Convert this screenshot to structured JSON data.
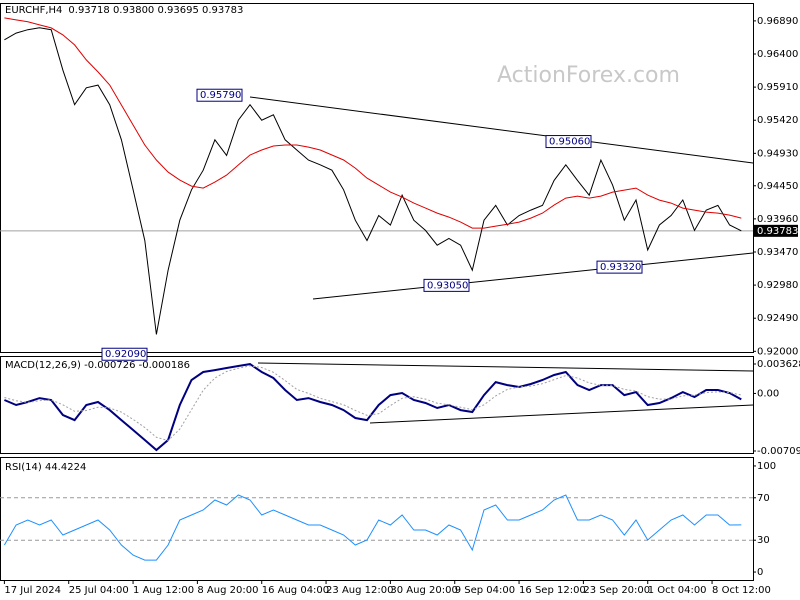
{
  "watermark": "ActionForex.com",
  "chart_data": [
    {
      "type": "line",
      "title": "EURCHF,H4",
      "subtitle": "0.93718 0.93800 0.93695 0.93783",
      "x": [
        0,
        8,
        16,
        24,
        32,
        40,
        48,
        56,
        64,
        72,
        80,
        88,
        96,
        104,
        112,
        120,
        128,
        136,
        144,
        152,
        160,
        168,
        176,
        184,
        192,
        200,
        208,
        216,
        224,
        232,
        240,
        248,
        256,
        264,
        272,
        280,
        288,
        296,
        304,
        312,
        320,
        328,
        336,
        344,
        352,
        360,
        368,
        376,
        384,
        392,
        400,
        408,
        416,
        424,
        432,
        440,
        448,
        456,
        464,
        472,
        480,
        488,
        496,
        504
      ],
      "xlim": [
        -3,
        512
      ],
      "ylim": [
        0.9199,
        0.9714
      ],
      "yticks": [
        {
          "value": 0.9689,
          "label": "0.96890"
        },
        {
          "value": 0.964,
          "label": "0.96400"
        },
        {
          "value": 0.9591,
          "label": "0.95910"
        },
        {
          "value": 0.9542,
          "label": "0.95420"
        },
        {
          "value": 0.9493,
          "label": "0.94930"
        },
        {
          "value": 0.9445,
          "label": "0.94450"
        },
        {
          "value": 0.9396,
          "label": "0.93960"
        },
        {
          "value": 0.9347,
          "label": "0.93470"
        },
        {
          "value": 0.9298,
          "label": "0.92980"
        },
        {
          "value": 0.9249,
          "label": "0.92490"
        },
        {
          "value": 0.92,
          "label": "0.92000"
        }
      ],
      "series": [
        {
          "color": "#000000",
          "values": [
            0.9661,
            0.9671,
            0.9676,
            0.9679,
            0.9676,
            0.9616,
            0.9565,
            0.959,
            0.9594,
            0.9565,
            0.9513,
            0.9439,
            0.9364,
            0.9225,
            0.932,
            0.9394,
            0.9439,
            0.9468,
            0.9513,
            0.949,
            0.9542,
            0.9565,
            0.9542,
            0.955,
            0.9513,
            0.9498,
            0.9483,
            0.9476,
            0.9468,
            0.9439,
            0.9394,
            0.9364,
            0.9401,
            0.9387,
            0.9431,
            0.9394,
            0.9379,
            0.9357,
            0.9367,
            0.9357,
            0.932,
            0.9394,
            0.9416,
            0.9387,
            0.9401,
            0.9409,
            0.9416,
            0.9453,
            0.9476,
            0.9453,
            0.9431,
            0.9483,
            0.9446,
            0.9394,
            0.9424,
            0.935,
            0.9387,
            0.9401,
            0.9424,
            0.9379,
            0.9409,
            0.9416,
            0.9387,
            0.93783
          ]
        },
        {
          "color": "#e00000",
          "values": [
            0.96935,
            0.96905,
            0.96876,
            0.96831,
            0.96787,
            0.96683,
            0.96535,
            0.96313,
            0.96135,
            0.95942,
            0.95646,
            0.95349,
            0.95053,
            0.94831,
            0.94653,
            0.94534,
            0.94445,
            0.94416,
            0.94505,
            0.94608,
            0.94757,
            0.94905,
            0.94979,
            0.95038,
            0.95053,
            0.95053,
            0.95023,
            0.94979,
            0.94905,
            0.94831,
            0.94712,
            0.94564,
            0.9446,
            0.94356,
            0.94282,
            0.94193,
            0.94119,
            0.94045,
            0.93986,
            0.93912,
            0.93823,
            0.93823,
            0.93853,
            0.93882,
            0.93912,
            0.93971,
            0.94045,
            0.94164,
            0.94267,
            0.94297,
            0.94267,
            0.94297,
            0.94356,
            0.94386,
            0.94416,
            0.94312,
            0.94238,
            0.94193,
            0.94119,
            0.9409,
            0.9406,
            0.94045,
            0.94016,
            0.93971
          ]
        }
      ],
      "last_price": {
        "value": 0.93783,
        "label": "0.93783"
      },
      "annotations": [
        {
          "value": 0.9579,
          "label": "0.95790"
        },
        {
          "value": 0.9209,
          "label": "0.92090"
        },
        {
          "value": 0.9305,
          "label": "0.93050"
        },
        {
          "value": 0.9506,
          "label": "0.95060"
        },
        {
          "value": 0.9332,
          "label": "0.93320"
        }
      ]
    },
    {
      "type": "line",
      "title": "MACD(12,26,9) -0.000726 -0.000186",
      "x": [
        0,
        8,
        16,
        24,
        32,
        40,
        48,
        56,
        64,
        72,
        80,
        88,
        96,
        104,
        112,
        120,
        128,
        136,
        144,
        152,
        160,
        168,
        176,
        184,
        192,
        200,
        208,
        216,
        224,
        232,
        240,
        248,
        256,
        264,
        272,
        280,
        288,
        296,
        304,
        312,
        320,
        328,
        336,
        344,
        352,
        360,
        368,
        376,
        384,
        392,
        400,
        408,
        416,
        424,
        432,
        440,
        448,
        456,
        464,
        472,
        480,
        488,
        496,
        504
      ],
      "xlim": [
        -3,
        512
      ],
      "ylim": [
        -0.00734,
        0.00449
      ],
      "yticks": [
        0.003628,
        {
          "value": 0,
          "label": "0.00"
        },
        -0.007093
      ],
      "series": [
        {
          "color": "#000080",
          "values": [
            -0.00081,
            -0.00143,
            -0.00106,
            -0.00057,
            -0.00081,
            -0.00266,
            -0.00328,
            -0.00143,
            -0.00106,
            -0.00205,
            -0.00328,
            -0.00451,
            -0.00574,
            -0.00697,
            -0.00574,
            -0.00143,
            0.00165,
            0.00264,
            0.00288,
            0.00313,
            0.00338,
            0.00362,
            0.00264,
            0.0019,
            0.00042,
            -0.00081,
            -0.00057,
            -0.00106,
            -0.00143,
            -0.00205,
            -0.00303,
            -0.00328,
            -0.00143,
            -0.0002,
            5e-05,
            -0.00081,
            -0.00118,
            -0.0018,
            -0.00143,
            -0.00205,
            -0.00229,
            -0.0002,
            0.0014,
            0.00103,
            0.00079,
            0.00116,
            0.00165,
            0.00227,
            0.00264,
            0.00103,
            0.00042,
            0.00103,
            0.00103,
            -0.0002,
            0.00017,
            -0.00143,
            -0.00118,
            -0.00057,
            0.00017,
            -0.00044,
            0.00042,
            0.00042,
            5e-05,
            -0.00073
          ]
        },
        {
          "color": "#a0a0a0",
          "values": [
            -0.0005,
            -0.0009,
            -0.0011,
            -0.0009,
            -0.0008,
            -0.0014,
            -0.0022,
            -0.0021,
            -0.0017,
            -0.0018,
            -0.0023,
            -0.0032,
            -0.0042,
            -0.0054,
            -0.0058,
            -0.0044,
            -0.002,
            0.0004,
            0.0019,
            0.0027,
            0.0031,
            0.0034,
            0.0032,
            0.0026,
            0.0016,
            0.0005,
            0,
            -0.0006,
            -0.001,
            -0.0014,
            -0.0021,
            -0.0027,
            -0.0025,
            -0.0015,
            -0.0006,
            -0.0004,
            -0.0007,
            -0.0012,
            -0.0014,
            -0.0017,
            -0.002,
            -0.0014,
            -0.0003,
            0.0005,
            0.0008,
            0.0009,
            0.0012,
            0.0017,
            0.0022,
            0.0019,
            0.0013,
            0.001,
            0.001,
            0.0005,
            0.0003,
            -0.0004,
            -0.0007,
            -0.0007,
            -0.0003,
            -0.0002,
            0.0001,
            0.0002,
            0.0001,
            -0.00019
          ]
        }
      ]
    },
    {
      "type": "line",
      "title": "RSI(14) 44.4224",
      "x": [
        0,
        8,
        16,
        24,
        32,
        40,
        48,
        56,
        64,
        72,
        80,
        88,
        96,
        104,
        112,
        120,
        128,
        136,
        144,
        152,
        160,
        168,
        176,
        184,
        192,
        200,
        208,
        216,
        224,
        232,
        240,
        248,
        256,
        264,
        272,
        280,
        288,
        296,
        304,
        312,
        320,
        328,
        336,
        344,
        352,
        360,
        368,
        376,
        384,
        392,
        400,
        408,
        416,
        424,
        432,
        440,
        448,
        456,
        464,
        472,
        480,
        488,
        496,
        504
      ],
      "xlim": [
        -3,
        512
      ],
      "ylim": [
        -7.5,
        107.5
      ],
      "yticks": [
        100,
        70,
        30,
        0
      ],
      "levels": [
        70,
        30
      ],
      "xticks": [
        {
          "value": 0,
          "label": "17 Jul 2024"
        },
        {
          "value": 44,
          "label": "25 Jul 04:00"
        },
        {
          "value": 88,
          "label": "1 Aug 12:00"
        },
        {
          "value": 132,
          "label": "8 Aug 20:00"
        },
        {
          "value": 176,
          "label": "16 Aug 04:00"
        },
        {
          "value": 220,
          "label": "23 Aug 12:00"
        },
        {
          "value": 264,
          "label": "30 Aug 20:00"
        },
        {
          "value": 308,
          "label": "9 Sep 04:00"
        },
        {
          "value": 352,
          "label": "16 Sep 12:00"
        },
        {
          "value": 396,
          "label": "23 Sep 20:00"
        },
        {
          "value": 440,
          "label": "1 Oct 04:00"
        },
        {
          "value": 484,
          "label": "8 Oct 12:00"
        }
      ],
      "series": [
        {
          "color": "#1e90ff",
          "values": [
            25.5,
            44.3,
            49.1,
            44.3,
            49.1,
            34.9,
            39.6,
            44.3,
            49.1,
            39.6,
            25.5,
            16,
            11.3,
            11.3,
            25.5,
            49.1,
            53.8,
            58.5,
            67.9,
            63.2,
            72.6,
            67.9,
            53.8,
            58.5,
            53.8,
            49.1,
            44.3,
            44.3,
            39.6,
            34.9,
            25.5,
            30.2,
            49.1,
            44.3,
            53.8,
            39.6,
            39.6,
            34.9,
            44.3,
            39.6,
            20.8,
            58.5,
            63.2,
            49.1,
            49.1,
            53.8,
            58.5,
            67.9,
            72.6,
            49.1,
            49.1,
            53.8,
            49.1,
            34.9,
            49.1,
            30.2,
            39.6,
            49.1,
            53.8,
            44.3,
            53.8,
            53.8,
            44.3,
            44.4224
          ]
        }
      ]
    }
  ]
}
